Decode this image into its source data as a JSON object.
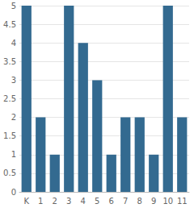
{
  "chart_data": {
    "type": "bar",
    "categories": [
      "K",
      "1",
      "2",
      "3",
      "4",
      "5",
      "6",
      "7",
      "8",
      "9",
      "10",
      "11"
    ],
    "values": [
      5,
      2,
      1,
      5,
      4,
      3,
      1,
      2,
      2,
      1,
      5,
      2
    ],
    "color": "#336a90",
    "ylim": [
      0,
      5
    ],
    "yticks": [
      0,
      0.5,
      1,
      1.5,
      2,
      2.5,
      3,
      3.5,
      4,
      4.5,
      5
    ],
    "grid": true
  }
}
